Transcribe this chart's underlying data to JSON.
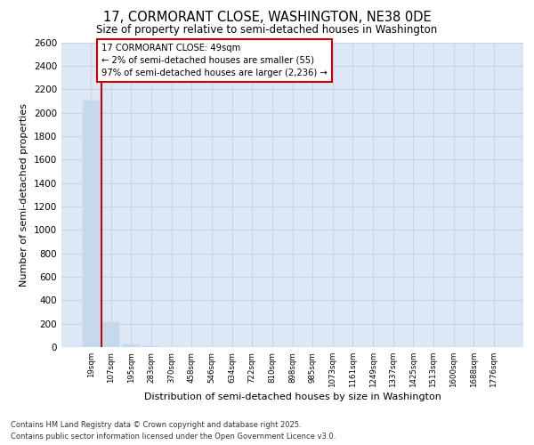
{
  "title1": "17, CORMORANT CLOSE, WASHINGTON, NE38 0DE",
  "title2": "Size of property relative to semi-detached houses in Washington",
  "xlabel": "Distribution of semi-detached houses by size in Washington",
  "ylabel": "Number of semi-detached properties",
  "annotation_title": "17 CORMORANT CLOSE: 49sqm",
  "annotation_line2": "← 2% of semi-detached houses are smaller (55)",
  "annotation_line3": "97% of semi-detached houses are larger (2,236) →",
  "footer1": "Contains HM Land Registry data © Crown copyright and database right 2025.",
  "footer2": "Contains public sector information licensed under the Open Government Licence v3.0.",
  "categories": [
    "19sqm",
    "107sqm",
    "195sqm",
    "283sqm",
    "370sqm",
    "458sqm",
    "546sqm",
    "634sqm",
    "722sqm",
    "810sqm",
    "898sqm",
    "985sqm",
    "1073sqm",
    "1161sqm",
    "1249sqm",
    "1337sqm",
    "1425sqm",
    "1513sqm",
    "1600sqm",
    "1688sqm",
    "1776sqm"
  ],
  "values": [
    2100,
    210,
    20,
    5,
    3,
    2,
    1,
    1,
    1,
    1,
    1,
    1,
    0,
    0,
    0,
    0,
    0,
    0,
    0,
    0,
    0
  ],
  "bar_color": "#c5d9ec",
  "annotation_box_color": "#cc0000",
  "ylim": [
    0,
    2600
  ],
  "yticks": [
    0,
    200,
    400,
    600,
    800,
    1000,
    1200,
    1400,
    1600,
    1800,
    2000,
    2200,
    2400,
    2600
  ],
  "grid_color": "#c8d4e3",
  "plot_bg": "#dce8f5",
  "fig_bg": "#ffffff"
}
